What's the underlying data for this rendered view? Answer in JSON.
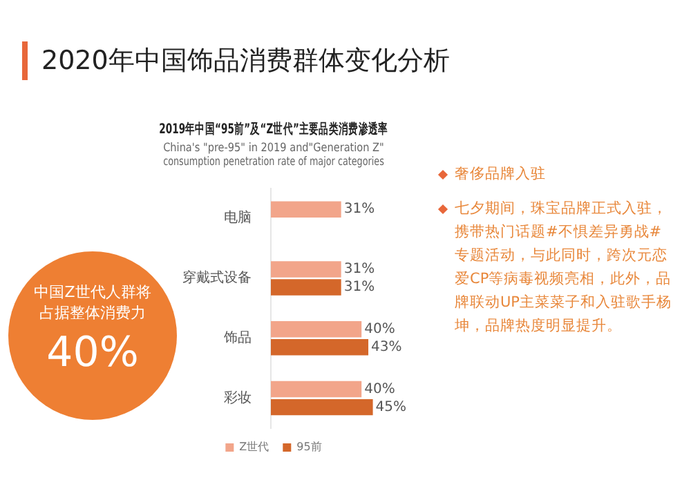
{
  "chart_data": [
    {
      "type": "other",
      "title": "2020年中国饰品消费群体变化分析"
    },
    {
      "type": "bar",
      "orientation": "horizontal",
      "title": "2019年中国“95前”及“Z世代”主要品类消费渗透率",
      "subtitle": "China's \"pre-95\" in 2019 and\"Generation Z\" consumption penetration rate of major categories",
      "categories": [
        "电脑",
        "穿戴式设备",
        "饰品",
        "彩妆"
      ],
      "series": [
        {
          "name": "Z世代",
          "color": "#f2a58a",
          "values": [
            31,
            31,
            40,
            40
          ],
          "value_labels": [
            "31%",
            "31%",
            "40%",
            "40%"
          ]
        },
        {
          "name": "95前",
          "color": "#d4672a",
          "values": [
            null,
            31,
            43,
            45
          ],
          "value_labels": [
            null,
            "31%",
            "43%",
            "45%"
          ]
        }
      ],
      "tick_labels": "y",
      "legend": "bottom",
      "grid": false
    },
    {
      "type": "other",
      "annotations": [
        "中国Z世代人群将占据整体消费力",
        "40%"
      ]
    },
    {
      "type": "other",
      "annotations": [
        "奢侈品牌入驻",
        "七夕期间，珠宝品牌正式入驻，携带热门话题#不惧差异勇战#专题活动，与此同时，跨次元恋爱CP等病毒视频亮相，此外，品牌联动UP主菜菜子和入驻歌手杨坤，品牌热度明显提升。"
      ]
    }
  ]
}
